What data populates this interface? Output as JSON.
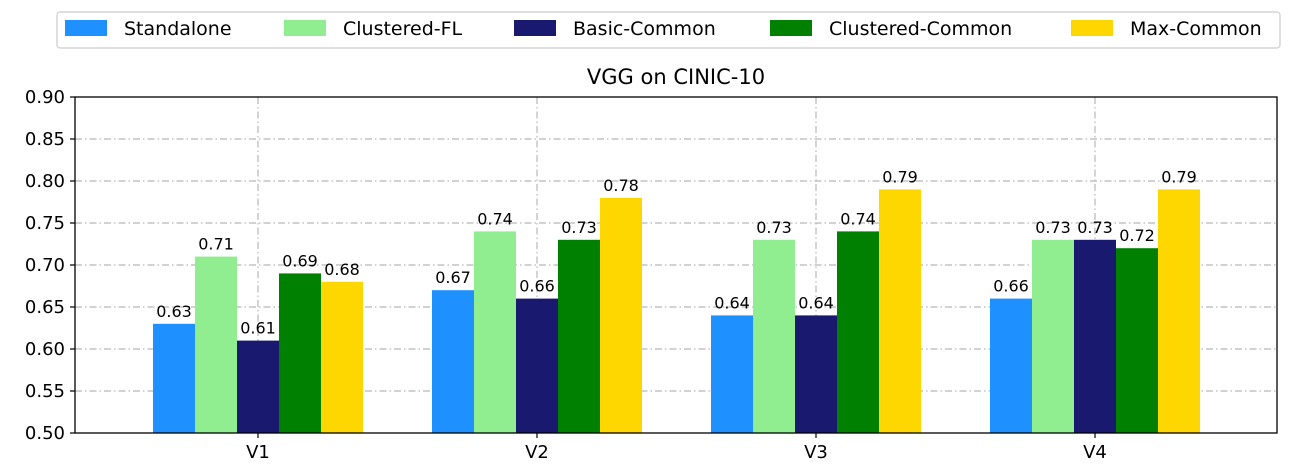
{
  "chart_data": {
    "type": "bar",
    "title": "VGG on CINIC-10",
    "xlabel": "",
    "ylabel": "",
    "categories": [
      "V1",
      "V2",
      "V3",
      "V4"
    ],
    "ylim": [
      0.5,
      0.9
    ],
    "yticks": [
      "0.50",
      "0.55",
      "0.60",
      "0.65",
      "0.70",
      "0.75",
      "0.80",
      "0.85",
      "0.90"
    ],
    "grid": true,
    "legend_position": "top",
    "series": [
      {
        "name": "Standalone",
        "color": "#1E90FF",
        "values": [
          0.63,
          0.67,
          0.64,
          0.66
        ],
        "labels": [
          "0.63",
          "0.67",
          "0.64",
          "0.66"
        ]
      },
      {
        "name": "Clustered-FL",
        "color": "#90EE90",
        "values": [
          0.71,
          0.74,
          0.73,
          0.73
        ],
        "labels": [
          "0.71",
          "0.74",
          "0.73",
          "0.73"
        ]
      },
      {
        "name": "Basic-Common",
        "color": "#191970",
        "values": [
          0.61,
          0.66,
          0.64,
          0.73
        ],
        "labels": [
          "0.61",
          "0.66",
          "0.64",
          "0.73"
        ]
      },
      {
        "name": "Clustered-Common",
        "color": "#008000",
        "values": [
          0.69,
          0.73,
          0.74,
          0.72
        ],
        "labels": [
          "0.69",
          "0.73",
          "0.74",
          "0.72"
        ]
      },
      {
        "name": "Max-Common",
        "color": "#FFD700",
        "values": [
          0.68,
          0.78,
          0.79,
          0.79
        ],
        "labels": [
          "0.68",
          "0.78",
          "0.79",
          "0.79"
        ]
      }
    ]
  }
}
